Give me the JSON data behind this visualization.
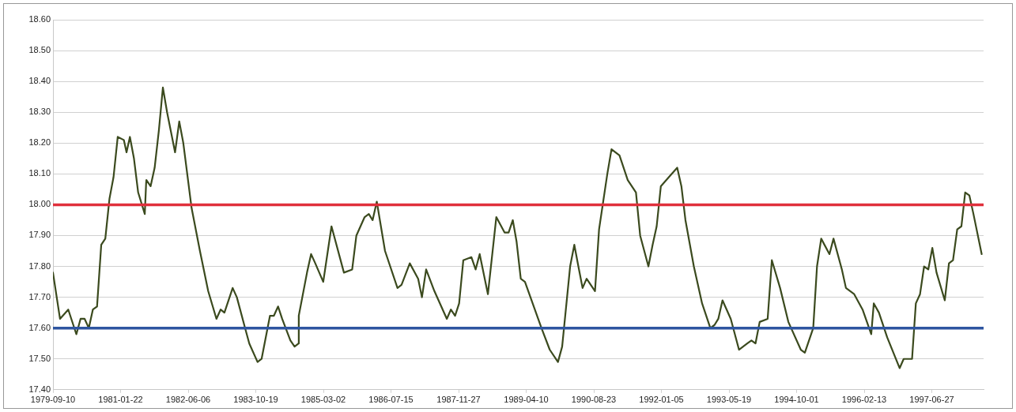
{
  "chart_data": {
    "type": "line",
    "x": [
      "1979-09-10",
      "1979-11",
      "1980-01",
      "1980-03",
      "1980-04",
      "1980-05",
      "1980-06",
      "1980-07",
      "1980-08",
      "1980-09",
      "1980-10",
      "1980-11",
      "1980-12",
      "1981-01",
      "1981-02-15",
      "1981-03-07",
      "1981-04-01",
      "1981-05",
      "1981-06",
      "1981-07-20",
      "1981-07-30",
      "1981-08",
      "1981-09",
      "1981-10",
      "1981-11",
      "1981-12",
      "1982-01",
      "1982-03",
      "1982-04",
      "1982-05",
      "1982-07",
      "1982-09",
      "1982-11",
      "1983-01",
      "1983-02",
      "1983-03",
      "1983-05",
      "1983-06",
      "1983-08",
      "1983-09",
      "1983-11",
      "1983-12",
      "1984-02",
      "1984-03",
      "1984-04",
      "1984-05",
      "1984-07",
      "1984-08-01",
      "1984-08-31",
      "1984-09",
      "1984-11",
      "1984-12",
      "1985-01",
      "1985-03",
      "1985-05",
      "1985-08",
      "1985-10",
      "1985-11",
      "1986-01",
      "1986-02",
      "1986-03",
      "1986-04",
      "1986-06",
      "1986-09",
      "1986-10",
      "1986-12",
      "1987-02",
      "1987-03",
      "1987-04",
      "1987-06",
      "1987-09",
      "1987-10",
      "1987-11",
      "1987-12",
      "1988-01",
      "1988-03",
      "1988-04",
      "1988-05",
      "1988-07",
      "1988-09",
      "1988-11",
      "1988-12",
      "1989-01-01",
      "1989-01-29",
      "1989-03",
      "1989-04",
      "1989-08",
      "1989-10",
      "1989-12",
      "1990-01",
      "1990-03",
      "1990-04",
      "1990-05",
      "1990-06",
      "1990-07",
      "1990-09",
      "1990-10",
      "1990-12",
      "1991-01",
      "1991-03",
      "1991-05",
      "1991-07",
      "1991-08",
      "1991-10",
      "1991-11",
      "1991-12",
      "1992-01",
      "1992-03",
      "1992-05",
      "1992-06",
      "1992-07",
      "1992-09",
      "1992-11",
      "1993-01",
      "1993-02",
      "1993-03",
      "1993-04",
      "1993-06",
      "1993-08",
      "1993-10",
      "1993-11",
      "1993-12",
      "1994-01",
      "1994-03",
      "1994-04",
      "1994-06",
      "1994-08",
      "1994-11",
      "1994-12",
      "1995-02",
      "1995-03",
      "1995-04",
      "1995-06",
      "1995-07",
      "1995-09",
      "1995-10",
      "1995-12",
      "1996-02",
      "1996-04-05",
      "1996-04-24",
      "1996-06",
      "1996-08",
      "1996-11",
      "1996-12",
      "1997-02",
      "1997-03",
      "1997-04",
      "1997-05",
      "1997-06",
      "1997-07",
      "1997-08",
      "1997-10",
      "1997-11",
      "1997-12",
      "1998-01",
      "1998-02",
      "1998-03",
      "1998-04",
      "1998-05",
      "1998-07"
    ],
    "series": [
      {
        "color": "#3b4a1e",
        "values": [
          17.78,
          17.63,
          17.66,
          17.58,
          17.63,
          17.63,
          17.6,
          17.66,
          17.67,
          17.87,
          17.89,
          18.02,
          18.09,
          18.22,
          18.21,
          18.17,
          18.22,
          18.15,
          18.04,
          17.97,
          18.07,
          18.08,
          18.06,
          18.12,
          18.24,
          18.38,
          18.3,
          18.17,
          18.27,
          18.2,
          17.99,
          17.85,
          17.72,
          17.63,
          17.66,
          17.65,
          17.73,
          17.7,
          17.6,
          17.55,
          17.49,
          17.5,
          17.64,
          17.64,
          17.67,
          17.63,
          17.56,
          17.54,
          17.55,
          17.64,
          17.78,
          17.84,
          17.81,
          17.75,
          17.93,
          17.78,
          17.79,
          17.9,
          17.96,
          17.97,
          17.95,
          18.01,
          17.85,
          17.73,
          17.74,
          17.81,
          17.76,
          17.7,
          17.79,
          17.72,
          17.63,
          17.66,
          17.64,
          17.68,
          17.82,
          17.83,
          17.79,
          17.84,
          17.71,
          17.96,
          17.91,
          17.91,
          17.95,
          17.88,
          17.76,
          17.75,
          17.6,
          17.53,
          17.49,
          17.54,
          17.8,
          17.87,
          17.8,
          17.73,
          17.76,
          17.72,
          17.92,
          18.1,
          18.18,
          18.16,
          18.08,
          18.04,
          17.9,
          17.8,
          17.87,
          17.93,
          18.06,
          18.09,
          18.12,
          18.06,
          17.95,
          17.8,
          17.68,
          17.6,
          17.61,
          17.63,
          17.69,
          17.63,
          17.53,
          17.55,
          17.56,
          17.55,
          17.62,
          17.63,
          17.82,
          17.73,
          17.62,
          17.53,
          17.52,
          17.6,
          17.8,
          17.89,
          17.84,
          17.89,
          17.79,
          17.73,
          17.71,
          17.66,
          17.58,
          17.68,
          17.65,
          17.57,
          17.47,
          17.5,
          17.5,
          17.68,
          17.71,
          17.8,
          17.79,
          17.86,
          17.78,
          17.69,
          17.81,
          17.82,
          17.92,
          17.93,
          18.04,
          18.03,
          17.97,
          17.84
        ]
      }
    ],
    "xlim": [
      "1979-09-10",
      "1998-07-15"
    ],
    "xticks": [
      "1979-09-10",
      "1981-01-22",
      "1982-06-06",
      "1983-10-19",
      "1985-03-02",
      "1986-07-15",
      "1987-11-27",
      "1989-04-10",
      "1990-08-23",
      "1992-01-05",
      "1993-05-19",
      "1994-10-01",
      "1996-02-13",
      "1997-06-27"
    ],
    "ylim": [
      17.4,
      18.6
    ],
    "yticks": [
      {
        "value": 17.4,
        "label": "17.40"
      },
      {
        "value": 17.5,
        "label": "17.50"
      },
      {
        "value": 17.6,
        "label": "17.60"
      },
      {
        "value": 17.7,
        "label": "17.70"
      },
      {
        "value": 17.8,
        "label": "17.80"
      },
      {
        "value": 17.9,
        "label": "17.90"
      },
      {
        "value": 18.0,
        "label": "18.00"
      },
      {
        "value": 18.1,
        "label": "18.10"
      },
      {
        "value": 18.2,
        "label": "18.20"
      },
      {
        "value": 18.3,
        "label": "18.30"
      },
      {
        "value": 18.4,
        "label": "18.40"
      },
      {
        "value": 18.5,
        "label": "18.50"
      },
      {
        "value": 18.6,
        "label": "18.60"
      }
    ],
    "ref_lines": [
      {
        "axis": "y",
        "value": 18.0,
        "color": "#e0303c"
      },
      {
        "axis": "y",
        "value": 17.6,
        "color": "#2e55a0"
      }
    ],
    "grid": "y",
    "legend": false,
    "marker": "none",
    "line_style": "solid"
  }
}
